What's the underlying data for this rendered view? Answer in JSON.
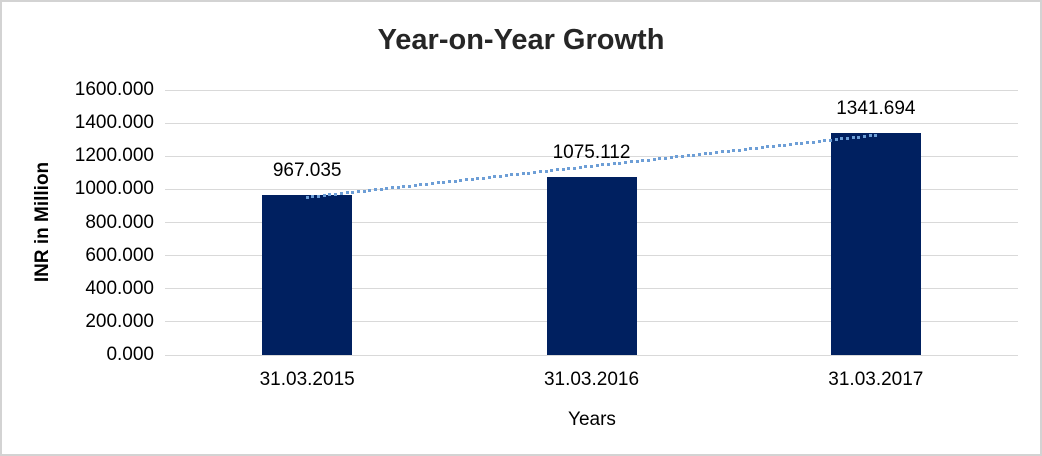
{
  "chart_data": {
    "type": "bar",
    "title": "Year-on-Year Growth",
    "categories": [
      "31.03.2015",
      "31.03.2016",
      "31.03.2017"
    ],
    "values": [
      967.035,
      1075.112,
      1341.694
    ],
    "value_labels": [
      "967.035",
      "1075.112",
      "1341.694"
    ],
    "xlabel": "Years",
    "ylabel": "INR in Million",
    "ylim": [
      0,
      1600
    ],
    "ytick_step": 200,
    "ytick_labels": [
      "0.000",
      "200.000",
      "400.000",
      "600.000",
      "800.000",
      "1000.000",
      "1200.000",
      "1400.000",
      "1600.000"
    ],
    "grid": true,
    "legend": "none",
    "trendline": {
      "type": "linear",
      "style": "dotted"
    },
    "colors": {
      "bar": "#002060",
      "trendline": "#6d9ed6",
      "gridline": "#d9d9d9",
      "title": "#262626",
      "text": "#000000",
      "border": "#d3d3d3"
    }
  }
}
